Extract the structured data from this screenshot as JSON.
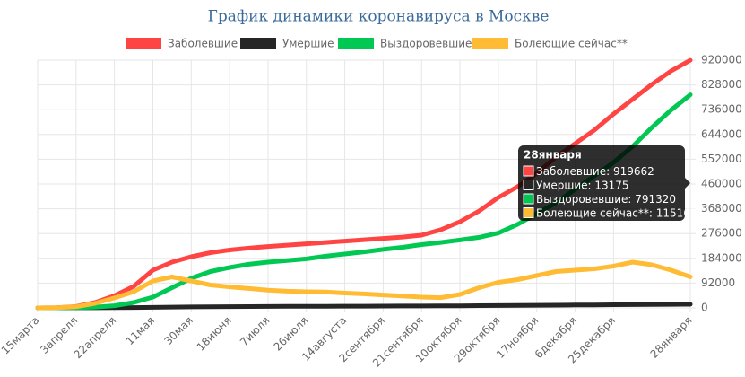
{
  "chart_data": {
    "type": "line",
    "title": "График динамики коронавируса в Москве",
    "categories": [
      "15марта",
      null,
      "3апреля",
      null,
      "22апреля",
      null,
      "11мая",
      null,
      "30мая",
      null,
      "18июня",
      null,
      "7июля",
      null,
      "26июля",
      null,
      "14августа",
      null,
      "2сентября",
      null,
      "21сентября",
      null,
      "10октября",
      null,
      "29октября",
      null,
      "17ноября",
      null,
      "6декабря",
      null,
      "25декабря",
      null,
      null,
      null,
      "28января"
    ],
    "series": [
      {
        "name": "Заболевшие",
        "color": "#ff4444",
        "values": [
          0,
          1000,
          5000,
          20000,
          45000,
          80000,
          140000,
          170000,
          190000,
          205000,
          215000,
          222000,
          228000,
          233000,
          238000,
          243000,
          248000,
          253000,
          258000,
          263000,
          270000,
          290000,
          320000,
          360000,
          410000,
          450000,
          500000,
          560000,
          610000,
          660000,
          720000,
          775000,
          830000,
          880000,
          919662
        ]
      },
      {
        "name": "Умершие",
        "color": "#262626",
        "values": [
          0,
          0,
          200,
          500,
          1000,
          1500,
          2000,
          3000,
          3700,
          4300,
          4700,
          5000,
          5300,
          5600,
          5900,
          6100,
          6300,
          6500,
          6700,
          6900,
          7100,
          7300,
          7700,
          8200,
          8700,
          9100,
          9600,
          10100,
          10600,
          11100,
          11600,
          12100,
          12600,
          12900,
          13175
        ]
      },
      {
        "name": "Выздоровевшие",
        "color": "#00c853",
        "values": [
          0,
          0,
          1000,
          3000,
          8000,
          20000,
          40000,
          75000,
          110000,
          135000,
          150000,
          162000,
          170000,
          176000,
          182000,
          192000,
          200000,
          208000,
          217000,
          225000,
          235000,
          243000,
          252000,
          262000,
          278000,
          310000,
          350000,
          390000,
          440000,
          490000,
          540000,
          600000,
          670000,
          735000,
          791320
        ]
      },
      {
        "name": "Болеющие сейчас**",
        "color": "#ffbb33",
        "values": [
          0,
          1000,
          4000,
          17000,
          37000,
          60000,
          100000,
          115000,
          100000,
          85000,
          78000,
          72000,
          66000,
          62000,
          60000,
          59000,
          55000,
          52000,
          48000,
          44000,
          40000,
          38000,
          50000,
          75000,
          95000,
          105000,
          120000,
          135000,
          140000,
          145000,
          155000,
          170000,
          160000,
          140000,
          115167
        ]
      }
    ],
    "ylim": [
      0,
      920000
    ],
    "yticks": [
      0,
      92000,
      184000,
      276000,
      368000,
      460000,
      552000,
      644000,
      736000,
      828000,
      920000
    ],
    "grid": true,
    "legend": "top"
  }
}
